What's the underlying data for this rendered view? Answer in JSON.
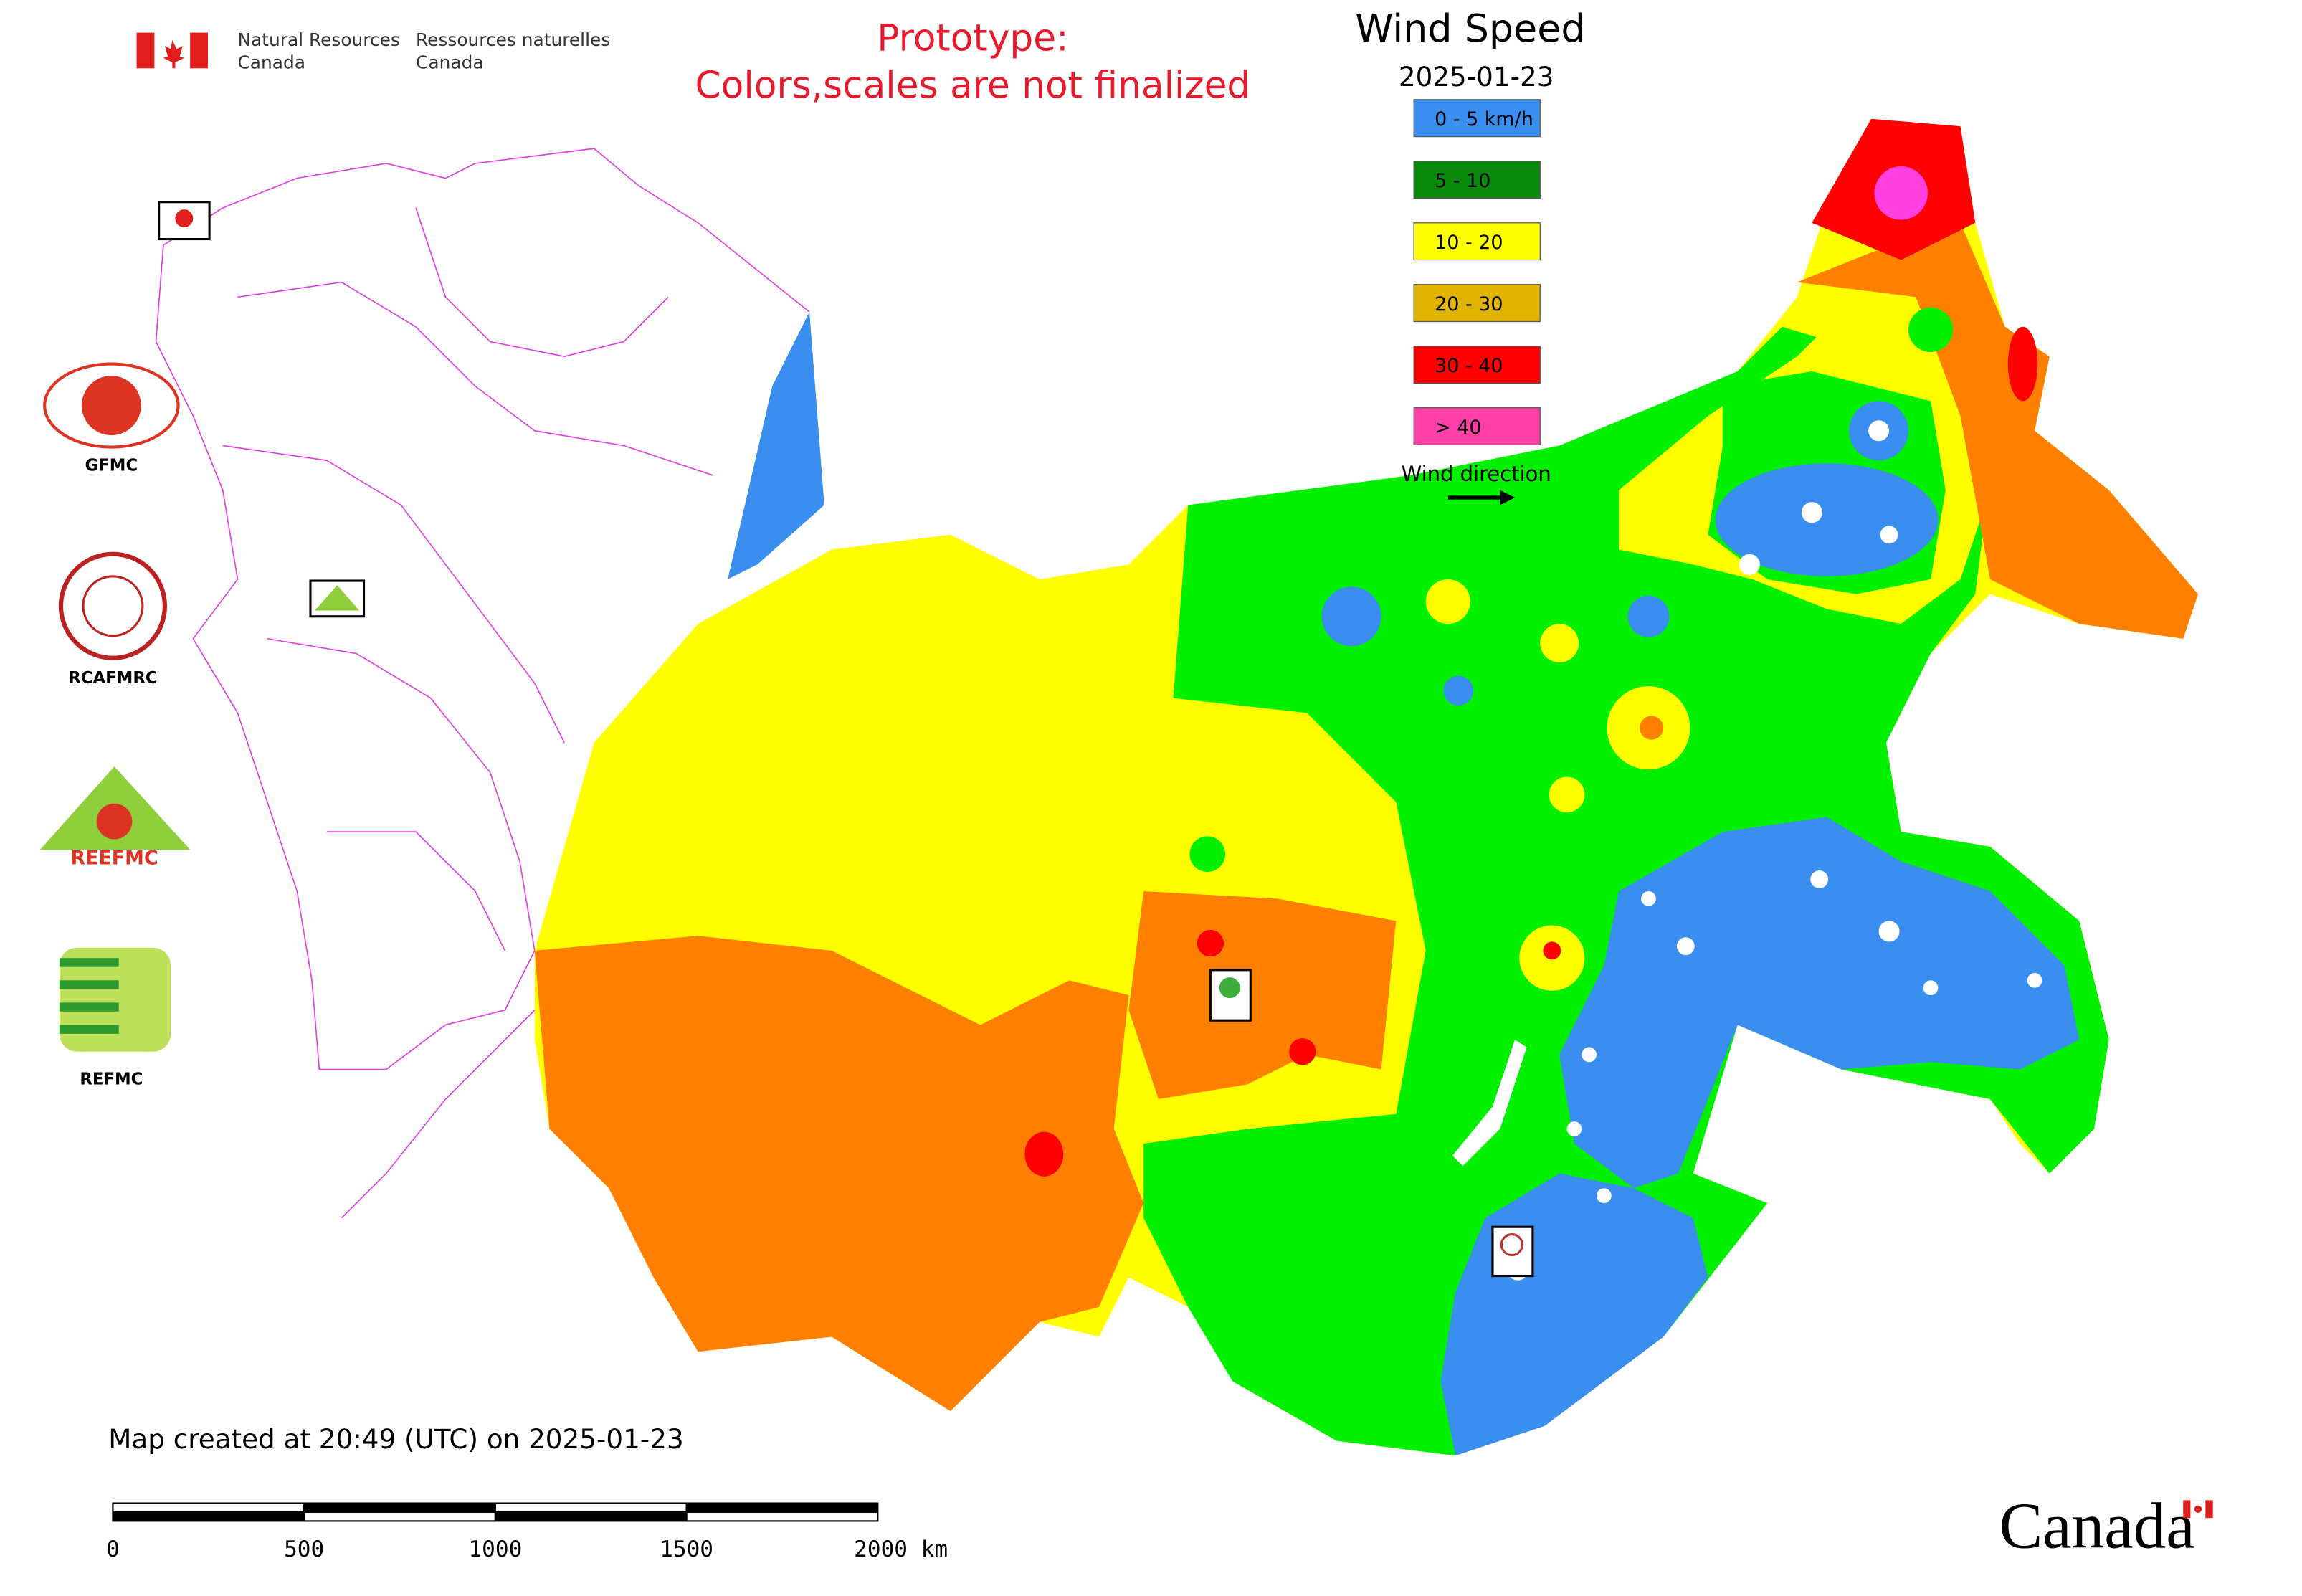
{
  "header": {
    "en_line1": "Natural Resources",
    "en_line2": "Canada",
    "fr_line1": "Ressources naturelles",
    "fr_line2": "Canada"
  },
  "notice": [
    "Prototype:",
    "Colors,scales are not finalized"
  ],
  "title": "Wind Speed",
  "date": "2025-01-23",
  "legend": {
    "items": [
      {
        "label": "0 - 5 km/h",
        "color": "#3a8ef0"
      },
      {
        "label": "5 - 10",
        "color": "#0a8a0a"
      },
      {
        "label": "10 - 20",
        "color": "#ffff00"
      },
      {
        "label": "20 - 30",
        "color": "#e0b400"
      },
      {
        "label": "30 - 40",
        "color": "#ff0000"
      },
      {
        "label": "> 40",
        "color": "#ff3fa8"
      }
    ],
    "arrow_label": "Wind direction"
  },
  "logos": [
    "GFMC",
    "RCAFMRC",
    "REEFMC",
    "REFMC"
  ],
  "footer": "Map created at 20:49 (UTC) on 2025-01-23",
  "scale_bar": {
    "ticks": [
      0,
      500,
      1000,
      1500,
      {
        "value": 2000,
        "label": "2000 km"
      }
    ]
  },
  "wordmark": "Canada"
}
